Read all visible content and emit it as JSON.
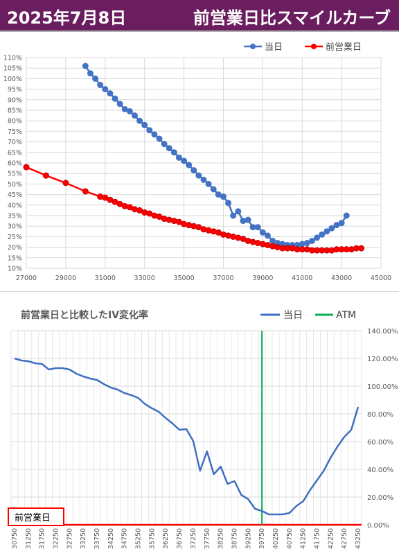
{
  "header": {
    "date": "2025年7月8日",
    "title": "前営業日比スマイルカーブ"
  },
  "colors": {
    "header_bg": "#6b1e5f",
    "today": "#4472c4",
    "prev": "#ff0000",
    "atm": "#00b050",
    "line2": "#3f6fc0"
  },
  "chart_data": [
    {
      "type": "line",
      "title": "",
      "legend": "top-right",
      "grid": true,
      "xlim": [
        27000,
        45000
      ],
      "ylim": [
        10,
        110
      ],
      "x_ticks": [
        "27000",
        "29000",
        "31000",
        "33000",
        "35000",
        "37000",
        "39000",
        "41000",
        "43000",
        "45000"
      ],
      "y_ticks": [
        "10%",
        "15%",
        "20%",
        "25%",
        "30%",
        "35%",
        "40%",
        "45%",
        "50%",
        "55%",
        "60%",
        "65%",
        "70%",
        "75%",
        "80%",
        "85%",
        "90%",
        "95%",
        "100%",
        "105%",
        "110%"
      ],
      "series": [
        {
          "name": "当日",
          "x": [
            30000,
            30250,
            30500,
            30750,
            31000,
            31250,
            31500,
            31750,
            32000,
            32250,
            32500,
            32750,
            33000,
            33250,
            33500,
            33750,
            34000,
            34250,
            34500,
            34750,
            35000,
            35250,
            35500,
            35750,
            36000,
            36250,
            36500,
            36750,
            37000,
            37250,
            37500,
            37750,
            38000,
            38250,
            38500,
            38750,
            39000,
            39250,
            39500,
            39750,
            40000,
            40250,
            40500,
            40750,
            41000,
            41250,
            41500,
            41750,
            42000,
            42250,
            42500,
            42750,
            43000,
            43250
          ],
          "y": [
            106,
            102.5,
            100,
            97,
            95,
            93,
            90.5,
            88,
            85.5,
            84.5,
            82.5,
            80,
            78,
            75.5,
            73.5,
            71.5,
            69,
            67,
            65,
            62.5,
            61,
            59,
            56.5,
            54,
            52,
            50,
            47.5,
            45,
            44,
            41,
            35,
            37,
            32.5,
            33,
            29.5,
            29.5,
            27,
            25.5,
            23,
            22,
            21.5,
            21,
            21,
            21,
            21.5,
            22,
            23,
            24.5,
            26,
            27.5,
            29,
            30.5,
            31.5,
            35
          ]
        },
        {
          "name": "前営業日",
          "x": [
            27000,
            28000,
            29000,
            30000,
            30750,
            31000,
            31250,
            31500,
            31750,
            32000,
            32250,
            32500,
            32750,
            33000,
            33250,
            33500,
            33750,
            34000,
            34250,
            34500,
            34750,
            35000,
            35250,
            35500,
            35750,
            36000,
            36250,
            36500,
            36750,
            37000,
            37250,
            37500,
            37750,
            38000,
            38250,
            38500,
            38750,
            39000,
            39250,
            39500,
            39750,
            40000,
            40250,
            40500,
            40750,
            41000,
            41250,
            41500,
            41750,
            42000,
            42250,
            42500,
            42750,
            43000,
            43250,
            43500,
            43750,
            44000
          ],
          "y": [
            58,
            54,
            50.5,
            46.5,
            44,
            43.5,
            42.5,
            41.5,
            40.5,
            39.5,
            39,
            38,
            37.5,
            36.5,
            36,
            35,
            34.5,
            33.5,
            33,
            32.5,
            32,
            31,
            30.5,
            30,
            29.5,
            28.5,
            28,
            27.5,
            27,
            26,
            25.5,
            25,
            24.5,
            24,
            23,
            22.5,
            22,
            21.5,
            21,
            20.5,
            20,
            19.5,
            19.5,
            19.5,
            19,
            19,
            19,
            18.5,
            18.5,
            18.5,
            18.5,
            18.5,
            19,
            19,
            19,
            19,
            19.5,
            19.5
          ]
        }
      ]
    },
    {
      "type": "line",
      "title": "前営業日と比較したIV変化率",
      "legend": "top-right",
      "grid": true,
      "ylim": [
        0,
        140
      ],
      "y_ticks": [
        "0.00%",
        "20.00%",
        "40.00%",
        "60.00%",
        "80.00%",
        "100.00%",
        "120.00%",
        "140.00%"
      ],
      "x_tick_labels": [
        "30750",
        "31250",
        "31750",
        "32250",
        "32750",
        "33250",
        "33750",
        "34250",
        "34750",
        "35250",
        "35750",
        "36250",
        "36750",
        "37250",
        "37750",
        "38250",
        "38750",
        "39250",
        "39750",
        "40250",
        "40750",
        "41250",
        "41750",
        "42250",
        "42750",
        "43250"
      ],
      "categories": [
        30750,
        31000,
        31250,
        31500,
        31750,
        32000,
        32250,
        32500,
        32750,
        33000,
        33250,
        33500,
        33750,
        34000,
        34250,
        34500,
        34750,
        35000,
        35250,
        35500,
        35750,
        36000,
        36250,
        36500,
        36750,
        37000,
        37250,
        37500,
        37750,
        38000,
        38250,
        38500,
        38750,
        39000,
        39250,
        39500,
        39750,
        40000,
        40250,
        40500,
        40750,
        41000,
        41250,
        41500,
        41750,
        42000,
        42250,
        42500,
        42750,
        43000,
        43250
      ],
      "series": [
        {
          "name": "当日",
          "values": [
            120,
            118.5,
            118,
            116.5,
            116,
            112,
            113,
            113,
            112,
            109,
            107,
            105.5,
            104.5,
            101.5,
            99,
            97.5,
            95,
            93.5,
            91.5,
            87,
            84,
            81.5,
            77,
            73,
            68.5,
            69,
            60.5,
            39,
            53,
            36.5,
            42,
            29.5,
            31.5,
            21.5,
            18.5,
            11.5,
            10,
            7.5,
            7.5,
            7.5,
            8.5,
            13.5,
            17,
            25,
            32,
            39,
            48.5,
            56.5,
            63.5,
            68.5,
            85
          ]
        }
      ],
      "atm": {
        "name": "ATM",
        "x": 39750
      },
      "baseline_label": "前営業日"
    }
  ]
}
